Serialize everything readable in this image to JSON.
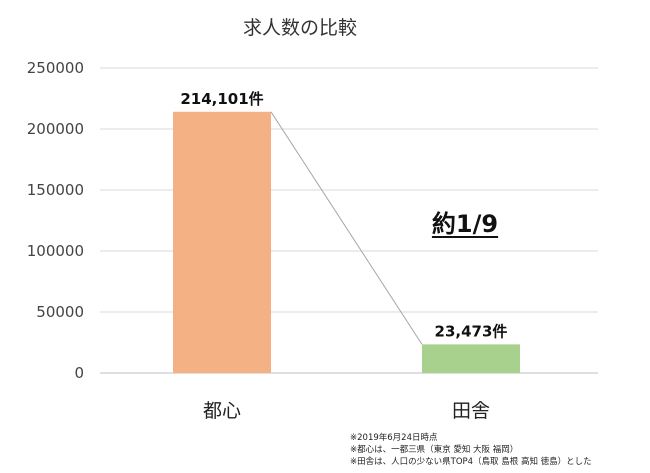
{
  "chart_data": {
    "type": "bar",
    "title": "求人数の比較",
    "categories": [
      "都心",
      "田舎"
    ],
    "values": [
      214101,
      23473
    ],
    "data_labels": [
      "214,101件",
      "23,473件"
    ],
    "ylim": [
      0,
      250000
    ],
    "y_ticks": [
      "0",
      "50000",
      "100000",
      "150000",
      "200000",
      "250000"
    ],
    "grid": true,
    "bar_colors": [
      "#f4b183",
      "#a9d18e"
    ],
    "annotation": "約1/9"
  },
  "notes": [
    "※2019年6月24日時点",
    "※都心は、一都三県（東京 愛知 大阪 福岡）",
    "※田舎は、人口の少ない県TOP4（鳥取 島根 高知 徳島）とした"
  ]
}
